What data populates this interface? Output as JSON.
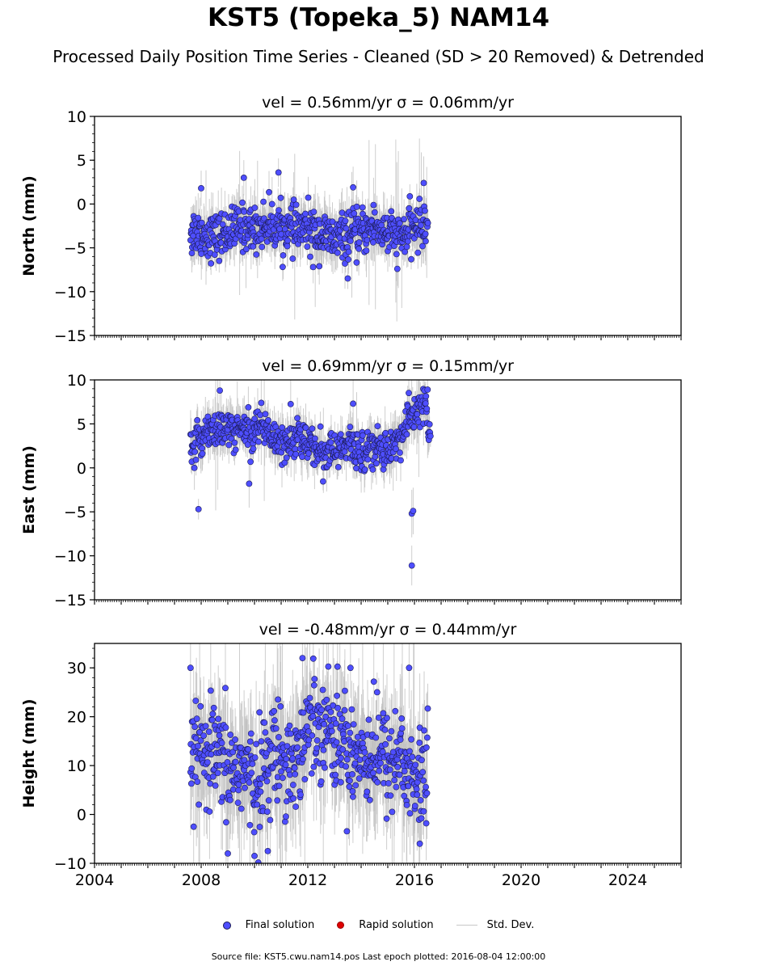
{
  "title": "KST5 (Topeka_5) NAM14",
  "subtitle": "Processed Daily Position Time Series - Cleaned (SD > 20 Removed) & Detrended",
  "legend": {
    "final": "Final solution",
    "rapid": "Rapid solution",
    "std": "Std. Dev."
  },
  "footer": "Source file: KST5.cwu.nam14.pos  Last epoch plotted: 2016-08-04 12:00:00",
  "colors": {
    "final_fill": "#4e4eff",
    "final_edge": "#1b1b55",
    "rapid": "#e00000",
    "stddev": "#bdbdbd"
  },
  "chart_data": [
    {
      "type": "scatter",
      "title": "vel = 0.56mm/yr   σ = 0.06mm/yr",
      "ylabel": "North (mm)",
      "xlim": [
        2004,
        2026
      ],
      "ylim": [
        -15,
        10
      ],
      "yticks": [
        -15,
        -10,
        -5,
        0,
        5,
        10
      ],
      "xticks": [],
      "series": [
        {
          "x": [
            2007.6,
            2008.0,
            2008.5,
            2009.0,
            2009.5,
            2010.0,
            2010.5,
            2011.0,
            2011.5,
            2012.0,
            2012.5,
            2013.0,
            2013.5,
            2014.0,
            2014.5,
            2015.0,
            2015.5,
            2016.0,
            2016.5
          ],
          "y": [
            -2.8,
            -3.4,
            -3.8,
            -3.2,
            -2.6,
            -2.9,
            -2.3,
            -2.7,
            -3.0,
            -2.8,
            -3.5,
            -4.1,
            -3.6,
            -3.3,
            -2.5,
            -3.4,
            -3.9,
            -2.6,
            -2.2
          ]
        }
      ],
      "spread": 1.6,
      "outliers": [
        {
          "x": 2009.6,
          "y": 3.0
        },
        {
          "x": 2010.9,
          "y": 3.6
        },
        {
          "x": 2016.35,
          "y": 2.4
        },
        {
          "x": 2013.7,
          "y": 1.9
        },
        {
          "x": 2008.0,
          "y": 1.8
        },
        {
          "x": 2013.5,
          "y": -8.5
        },
        {
          "x": 2007.65,
          "y": -5.6
        },
        {
          "x": 2012.2,
          "y": -7.2
        }
      ]
    },
    {
      "type": "scatter",
      "title": "vel = 0.69mm/yr   σ = 0.15mm/yr",
      "ylabel": "East (mm)",
      "xlim": [
        2004,
        2026
      ],
      "ylim": [
        -15,
        10
      ],
      "yticks": [
        -15,
        -10,
        -5,
        0,
        5,
        10
      ],
      "xticks": [],
      "series": [
        {
          "x": [
            2007.6,
            2007.9,
            2008.3,
            2008.8,
            2009.3,
            2009.8,
            2010.2,
            2010.7,
            2011.2,
            2011.6,
            2012.0,
            2012.5,
            2013.0,
            2013.5,
            2014.0,
            2014.5,
            2015.0,
            2015.4,
            2015.8,
            2016.1,
            2016.4,
            2016.6
          ],
          "y": [
            1.5,
            3.0,
            4.8,
            4.0,
            4.5,
            4.2,
            5.0,
            3.5,
            3.0,
            3.8,
            2.5,
            2.0,
            1.8,
            2.5,
            2.0,
            2.3,
            2.2,
            3.0,
            5.5,
            6.5,
            7.5,
            2.5
          ]
        }
      ],
      "spread": 1.4,
      "outliers": [
        {
          "x": 2007.9,
          "y": -4.7
        },
        {
          "x": 2008.7,
          "y": 8.8
        },
        {
          "x": 2015.9,
          "y": -11.1
        },
        {
          "x": 2015.9,
          "y": -5.2
        },
        {
          "x": 2015.95,
          "y": -4.9
        },
        {
          "x": 2009.8,
          "y": -1.8
        },
        {
          "x": 2013.7,
          "y": 7.3
        }
      ]
    },
    {
      "type": "scatter",
      "title": "vel = -0.48mm/yr   σ = 0.44mm/yr",
      "ylabel": "Height (mm)",
      "xlim": [
        2004,
        2026
      ],
      "ylim": [
        -10,
        35
      ],
      "yticks": [
        -10,
        0,
        10,
        20,
        30
      ],
      "xticks": [
        2004,
        2008,
        2012,
        2016,
        2020,
        2024
      ],
      "series": [
        {
          "x": [
            2007.6,
            2008.0,
            2008.5,
            2009.0,
            2009.5,
            2010.0,
            2010.5,
            2011.0,
            2011.5,
            2012.0,
            2012.5,
            2013.0,
            2013.5,
            2014.0,
            2014.5,
            2015.0,
            2015.5,
            2016.0,
            2016.5
          ],
          "y": [
            14,
            11,
            12,
            9,
            10,
            6,
            11,
            13,
            10,
            18,
            20,
            16,
            14,
            12,
            13,
            11,
            12,
            6,
            8
          ]
        }
      ],
      "spread": 6.5,
      "outliers": [
        {
          "x": 2007.6,
          "y": 30.0
        },
        {
          "x": 2011.8,
          "y": 32.0
        },
        {
          "x": 2013.6,
          "y": 30.0
        },
        {
          "x": 2015.8,
          "y": 30.0
        },
        {
          "x": 2009.0,
          "y": -8.0
        },
        {
          "x": 2010.0,
          "y": -8.5
        },
        {
          "x": 2010.5,
          "y": -7.5
        },
        {
          "x": 2016.2,
          "y": -6.0
        }
      ]
    }
  ]
}
